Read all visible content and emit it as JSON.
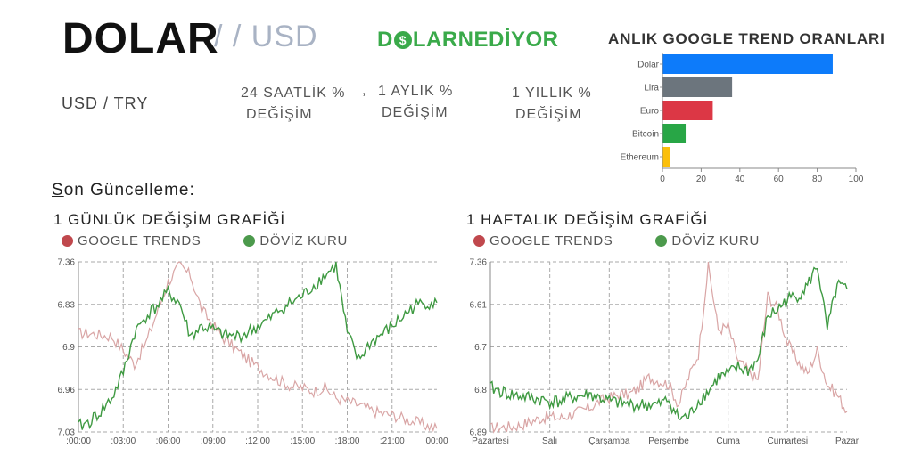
{
  "header": {
    "title": "DOLAR",
    "subtitle": "/ / USD",
    "brand_left": "D",
    "brand_coin": "$",
    "brand_right": "LARNEDİYOR"
  },
  "stats": {
    "pair": "USD / TRY",
    "daily_line1": "24 SAATLİK %",
    "daily_line2": "DEĞİŞİM",
    "separator": ",",
    "monthly_line1": "1 AYLIK %",
    "monthly_line2": "DEĞİŞİM",
    "yearly_line1": "1 YILLIK %",
    "yearly_line2": "DEĞİŞİM"
  },
  "last_update": {
    "first_letter": "S",
    "rest": "on Güncelleme:"
  },
  "colors": {
    "google": "#c0484d",
    "doviz": "#4c9a4c",
    "google_line": "#d9a5a5",
    "doviz_line": "#3f9a42"
  },
  "chart_data": [
    {
      "type": "bar",
      "orientation": "horizontal",
      "title": "ANLIK GOOGLE TREND ORANLARI",
      "categories": [
        "Dolar",
        "Lira",
        "Euro",
        "Bitcoin",
        "Ethereum"
      ],
      "values": [
        88,
        36,
        26,
        12,
        4
      ],
      "colors": [
        "#0d7bfa",
        "#6c757d",
        "#dc3745",
        "#28a646",
        "#fbbf0a"
      ],
      "xlim": [
        0,
        100
      ],
      "xticks": [
        "0",
        "20",
        "40",
        "60",
        "80",
        "100"
      ]
    },
    {
      "type": "line",
      "title": "1 GÜNLÜK DEĞİŞİM GRAFİĞİ",
      "legend": [
        "GOOGLE TRENDS",
        "DÖVİZ KURU"
      ],
      "xticks": [
        ":00:00",
        ":03:00",
        ":06:00",
        ":09:00",
        ":12:00",
        ":15:00",
        ":18:00",
        ":21:00",
        "00:00"
      ],
      "yticks": [
        "7.36",
        "6.83",
        "6.9",
        "6.96",
        "7.03"
      ],
      "x": [
        0,
        1,
        2,
        3,
        4,
        5,
        6,
        7,
        8,
        9,
        10,
        11,
        12,
        13,
        14,
        15,
        16,
        17,
        18,
        19,
        20,
        21,
        22,
        23,
        24,
        25,
        26,
        27,
        28,
        29,
        30,
        31,
        32
      ],
      "series": [
        {
          "name": "GOOGLE TRENDS",
          "values": [
            58,
            58,
            57,
            56,
            48,
            40,
            52,
            70,
            88,
            98,
            92,
            72,
            63,
            55,
            49,
            43,
            38,
            34,
            30,
            27,
            26,
            24,
            26,
            20,
            18,
            16,
            13,
            11,
            10,
            8,
            6,
            4,
            2
          ]
        },
        {
          "name": "DÖVİZ KURU",
          "values": [
            3,
            6,
            12,
            20,
            35,
            58,
            68,
            74,
            82,
            76,
            56,
            62,
            60,
            57,
            56,
            58,
            62,
            66,
            72,
            76,
            80,
            86,
            92,
            98,
            58,
            42,
            52,
            57,
            62,
            68,
            74,
            76,
            76
          ]
        }
      ]
    },
    {
      "type": "line",
      "title": "1 HAFTALIK DEĞİŞİM GRAFİĞİ",
      "legend": [
        "GOOGLE TRENDS",
        "DÖVİZ KURU"
      ],
      "xticks": [
        "Pazartesi",
        "Salı",
        "Çarşamba",
        "Perşembe",
        "Cuma",
        "Cumartesi",
        "Pazar"
      ],
      "yticks": [
        "7.36",
        "6.61",
        "6.7",
        "6.8",
        "6.89"
      ],
      "x": [
        0,
        1,
        2,
        3,
        4,
        5,
        6,
        7,
        8,
        9,
        10,
        11,
        12,
        13,
        14,
        15,
        16,
        17,
        18,
        19,
        20,
        21,
        22,
        23,
        24,
        25,
        26,
        27,
        28,
        29,
        30,
        31,
        32,
        33,
        34,
        35,
        36
      ],
      "series": [
        {
          "name": "GOOGLE TRENDS",
          "values": [
            2,
            3,
            3,
            4,
            6,
            8,
            9,
            8,
            10,
            12,
            14,
            18,
            20,
            22,
            22,
            26,
            32,
            30,
            28,
            16,
            32,
            46,
            98,
            60,
            62,
            42,
            36,
            30,
            80,
            72,
            52,
            42,
            34,
            48,
            28,
            22,
            12
          ]
        },
        {
          "name": "DÖVİZ KURU",
          "values": [
            26,
            24,
            22,
            21,
            20,
            19,
            18,
            18,
            20,
            21,
            22,
            20,
            18,
            17,
            16,
            16,
            16,
            16,
            19,
            8,
            9,
            18,
            24,
            32,
            34,
            38,
            36,
            42,
            68,
            72,
            78,
            80,
            86,
            98,
            60,
            86,
            84
          ]
        }
      ]
    }
  ]
}
